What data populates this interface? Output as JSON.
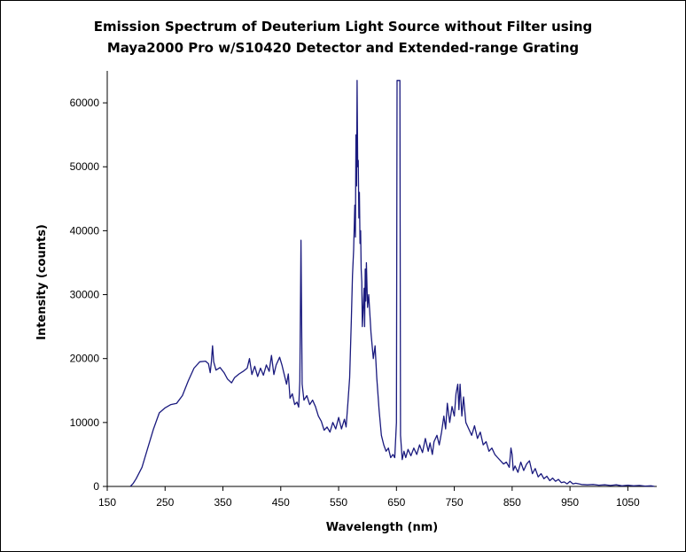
{
  "title": {
    "line1": "Emission Spectrum of Deuterium Light Source without Filter using",
    "line2": "Maya2000 Pro w/S10420 Detector and Extended-range Grating"
  },
  "colors": {
    "series": "#1a1a7e",
    "axis": "#000000"
  },
  "chart_data": {
    "type": "line",
    "xlabel": "Wavelength (nm)",
    "ylabel": "Intensity (counts)",
    "xlim": [
      150,
      1100
    ],
    "ylim": [
      0,
      65000
    ],
    "x_ticks": [
      150,
      250,
      350,
      450,
      550,
      650,
      750,
      850,
      950,
      1050
    ],
    "y_ticks": [
      0,
      10000,
      20000,
      30000,
      40000,
      50000,
      60000
    ],
    "grid": false,
    "legend": "none",
    "series": [
      {
        "points": [
          [
            190,
            0
          ],
          [
            195,
            500
          ],
          [
            200,
            1200
          ],
          [
            210,
            3000
          ],
          [
            220,
            6000
          ],
          [
            230,
            9000
          ],
          [
            240,
            11500
          ],
          [
            250,
            12300
          ],
          [
            260,
            12800
          ],
          [
            270,
            13000
          ],
          [
            280,
            14200
          ],
          [
            290,
            16500
          ],
          [
            300,
            18500
          ],
          [
            310,
            19500
          ],
          [
            320,
            19600
          ],
          [
            325,
            19200
          ],
          [
            328,
            17800
          ],
          [
            330,
            19500
          ],
          [
            332,
            22000
          ],
          [
            334,
            19500
          ],
          [
            338,
            18200
          ],
          [
            345,
            18600
          ],
          [
            352,
            17800
          ],
          [
            358,
            16800
          ],
          [
            365,
            16200
          ],
          [
            370,
            17000
          ],
          [
            378,
            17600
          ],
          [
            385,
            18000
          ],
          [
            392,
            18500
          ],
          [
            396,
            20000
          ],
          [
            400,
            17500
          ],
          [
            405,
            18800
          ],
          [
            410,
            17200
          ],
          [
            415,
            18500
          ],
          [
            420,
            17400
          ],
          [
            425,
            19000
          ],
          [
            430,
            18000
          ],
          [
            434,
            20500
          ],
          [
            438,
            17500
          ],
          [
            442,
            19000
          ],
          [
            448,
            20200
          ],
          [
            452,
            19000
          ],
          [
            456,
            17500
          ],
          [
            460,
            16000
          ],
          [
            463,
            17600
          ],
          [
            466,
            13800
          ],
          [
            470,
            14500
          ],
          [
            474,
            12800
          ],
          [
            478,
            13200
          ],
          [
            481,
            12400
          ],
          [
            483,
            16500
          ],
          [
            485,
            38500
          ],
          [
            487,
            16000
          ],
          [
            490,
            13500
          ],
          [
            495,
            14200
          ],
          [
            500,
            12800
          ],
          [
            505,
            13500
          ],
          [
            510,
            12500
          ],
          [
            515,
            11000
          ],
          [
            520,
            10200
          ],
          [
            525,
            8800
          ],
          [
            530,
            9300
          ],
          [
            535,
            8500
          ],
          [
            540,
            10000
          ],
          [
            545,
            9000
          ],
          [
            550,
            10800
          ],
          [
            555,
            9000
          ],
          [
            560,
            10500
          ],
          [
            563,
            9300
          ],
          [
            566,
            13000
          ],
          [
            569,
            17000
          ],
          [
            572,
            26000
          ],
          [
            574,
            33000
          ],
          [
            576,
            37000
          ],
          [
            578,
            44000
          ],
          [
            579,
            39000
          ],
          [
            580,
            55000
          ],
          [
            581,
            47000
          ],
          [
            582,
            63500
          ],
          [
            583,
            50000
          ],
          [
            584,
            51000
          ],
          [
            585,
            42000
          ],
          [
            586,
            46000
          ],
          [
            587,
            38000
          ],
          [
            588,
            40000
          ],
          [
            589,
            34000
          ],
          [
            590,
            32000
          ],
          [
            591,
            25000
          ],
          [
            592,
            27000
          ],
          [
            594,
            31000
          ],
          [
            595,
            25000
          ],
          [
            596,
            34000
          ],
          [
            597,
            29000
          ],
          [
            598,
            35000
          ],
          [
            600,
            28000
          ],
          [
            602,
            30000
          ],
          [
            604,
            27000
          ],
          [
            606,
            24000
          ],
          [
            608,
            22000
          ],
          [
            610,
            20000
          ],
          [
            613,
            22000
          ],
          [
            616,
            17000
          ],
          [
            620,
            12000
          ],
          [
            624,
            8000
          ],
          [
            628,
            6500
          ],
          [
            632,
            5500
          ],
          [
            636,
            6000
          ],
          [
            640,
            4500
          ],
          [
            644,
            5000
          ],
          [
            647,
            4500
          ],
          [
            650,
            10000
          ],
          [
            651,
            63500
          ],
          [
            656,
            63500
          ],
          [
            657,
            8000
          ],
          [
            660,
            4200
          ],
          [
            663,
            5500
          ],
          [
            666,
            4500
          ],
          [
            670,
            5800
          ],
          [
            675,
            4800
          ],
          [
            680,
            6000
          ],
          [
            685,
            5000
          ],
          [
            690,
            6500
          ],
          [
            695,
            5300
          ],
          [
            700,
            7500
          ],
          [
            705,
            5500
          ],
          [
            708,
            6800
          ],
          [
            712,
            5000
          ],
          [
            715,
            7000
          ],
          [
            720,
            8000
          ],
          [
            724,
            6500
          ],
          [
            728,
            8500
          ],
          [
            732,
            11000
          ],
          [
            735,
            9000
          ],
          [
            738,
            13000
          ],
          [
            742,
            10000
          ],
          [
            746,
            12500
          ],
          [
            750,
            11000
          ],
          [
            753,
            14500
          ],
          [
            756,
            16000
          ],
          [
            758,
            12000
          ],
          [
            760,
            16000
          ],
          [
            763,
            11000
          ],
          [
            766,
            14000
          ],
          [
            770,
            10000
          ],
          [
            775,
            9000
          ],
          [
            780,
            8000
          ],
          [
            785,
            9500
          ],
          [
            790,
            7500
          ],
          [
            795,
            8500
          ],
          [
            800,
            6500
          ],
          [
            805,
            7000
          ],
          [
            810,
            5500
          ],
          [
            815,
            6000
          ],
          [
            820,
            5000
          ],
          [
            825,
            4500
          ],
          [
            830,
            4000
          ],
          [
            835,
            3500
          ],
          [
            840,
            3800
          ],
          [
            845,
            3000
          ],
          [
            848,
            6000
          ],
          [
            850,
            5000
          ],
          [
            852,
            2500
          ],
          [
            855,
            3200
          ],
          [
            860,
            2200
          ],
          [
            865,
            3800
          ],
          [
            870,
            2500
          ],
          [
            875,
            3500
          ],
          [
            880,
            4000
          ],
          [
            885,
            2000
          ],
          [
            890,
            2800
          ],
          [
            895,
            1500
          ],
          [
            900,
            2000
          ],
          [
            905,
            1200
          ],
          [
            910,
            1600
          ],
          [
            915,
            900
          ],
          [
            920,
            1300
          ],
          [
            925,
            800
          ],
          [
            930,
            1100
          ],
          [
            935,
            600
          ],
          [
            940,
            700
          ],
          [
            945,
            400
          ],
          [
            950,
            800
          ],
          [
            955,
            400
          ],
          [
            960,
            500
          ],
          [
            970,
            300
          ],
          [
            980,
            250
          ],
          [
            990,
            300
          ],
          [
            1000,
            200
          ],
          [
            1010,
            250
          ],
          [
            1020,
            150
          ],
          [
            1030,
            250
          ],
          [
            1040,
            100
          ],
          [
            1050,
            200
          ],
          [
            1060,
            100
          ],
          [
            1070,
            150
          ],
          [
            1080,
            50
          ],
          [
            1090,
            100
          ],
          [
            1096,
            0
          ]
        ]
      }
    ]
  }
}
